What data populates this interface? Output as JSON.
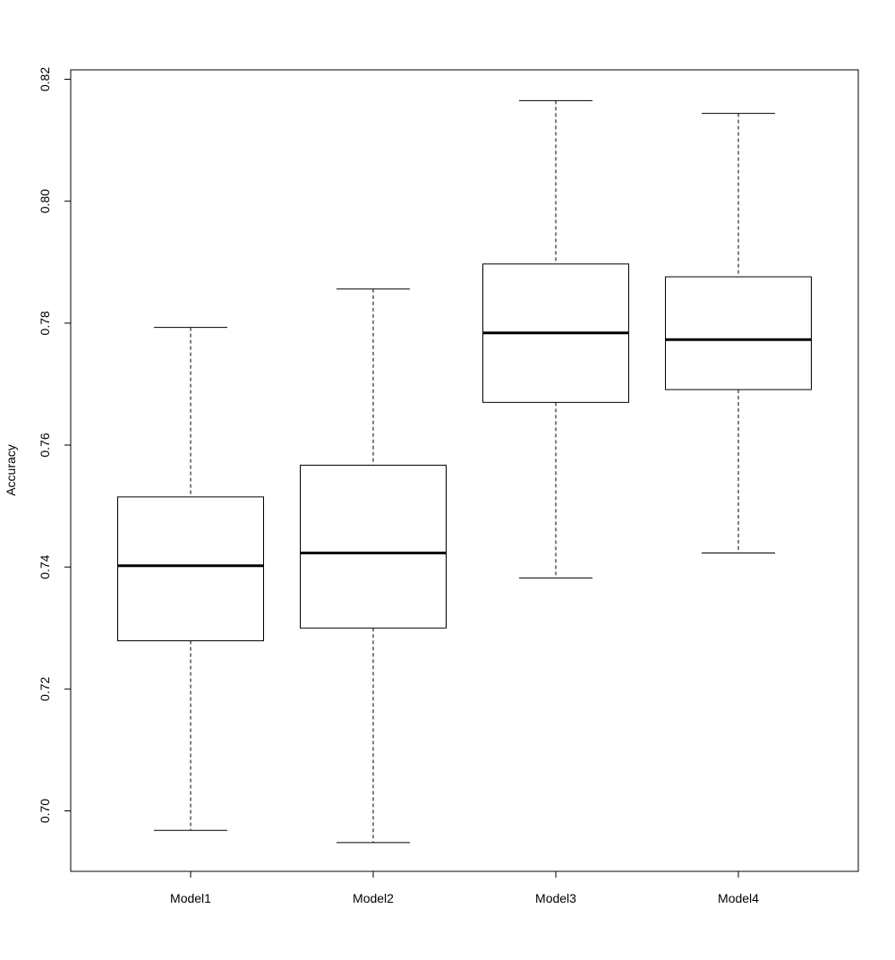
{
  "chart_data": {
    "type": "boxplot",
    "title": "",
    "xlabel": "",
    "ylabel": "Accuracy",
    "ylim": [
      0.69,
      0.82
    ],
    "yticks": [
      "0.70",
      "0.72",
      "0.74",
      "0.76",
      "0.78",
      "0.80",
      "0.82"
    ],
    "categories": [
      "Model1",
      "Model2",
      "Model3",
      "Model4"
    ],
    "boxes": [
      {
        "name": "Model1",
        "min": 0.6968,
        "q1": 0.7279,
        "median": 0.7402,
        "q3": 0.7515,
        "max": 0.7793
      },
      {
        "name": "Model2",
        "min": 0.6948,
        "q1": 0.73,
        "median": 0.7423,
        "q3": 0.7567,
        "max": 0.7856
      },
      {
        "name": "Model3",
        "min": 0.7382,
        "q1": 0.767,
        "median": 0.7784,
        "q3": 0.7897,
        "max": 0.8165
      },
      {
        "name": "Model4",
        "min": 0.7423,
        "q1": 0.7691,
        "median": 0.7773,
        "q3": 0.7876,
        "max": 0.8144
      }
    ],
    "grid": false,
    "legend": "none"
  }
}
